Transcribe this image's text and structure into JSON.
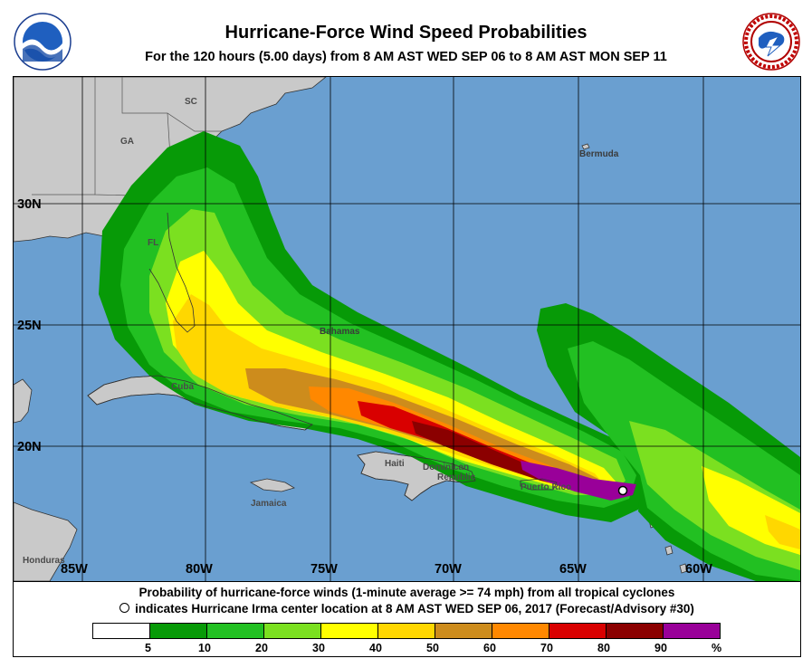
{
  "header": {
    "title": "Hurricane-Force Wind Speed Probabilities",
    "subtitle": "For the 120 hours (5.00 days) from 8 AM AST WED SEP 06 to 8 AM AST MON SEP 11",
    "logos": [
      "noaa-logo",
      "nws-logo"
    ]
  },
  "map": {
    "places": [
      "SC",
      "GA",
      "FL",
      "Bermuda",
      "Bahamas",
      "Cuba",
      "Haiti",
      "Dominican",
      "Republic",
      "Puerto Rico",
      "Jamaica",
      "Honduras"
    ],
    "lat_labels": [
      "30N",
      "25N",
      "20N"
    ],
    "lon_labels": [
      "85W",
      "80W",
      "75W",
      "70W",
      "65W",
      "60W"
    ],
    "colors": {
      "ocean": "#6a9fd0",
      "land": "#c9c9c9"
    }
  },
  "legend": {
    "line1": "Probability of hurricane-force winds (1-minute average >= 74 mph) from all tropical cyclones",
    "line2": "indicates Hurricane Irma center location at 8 AM AST WED SEP 06, 2017 (Forecast/Advisory #30)",
    "scale_ticks": [
      "5",
      "10",
      "20",
      "30",
      "40",
      "50",
      "60",
      "70",
      "80",
      "90"
    ],
    "unit": "%",
    "scale_colors": [
      "#ffffff",
      "#079a07",
      "#22c022",
      "#7be020",
      "#ffff00",
      "#ffd700",
      "#cd8c1c",
      "#ff8800",
      "#d90000",
      "#8b0000",
      "#990099"
    ]
  }
}
